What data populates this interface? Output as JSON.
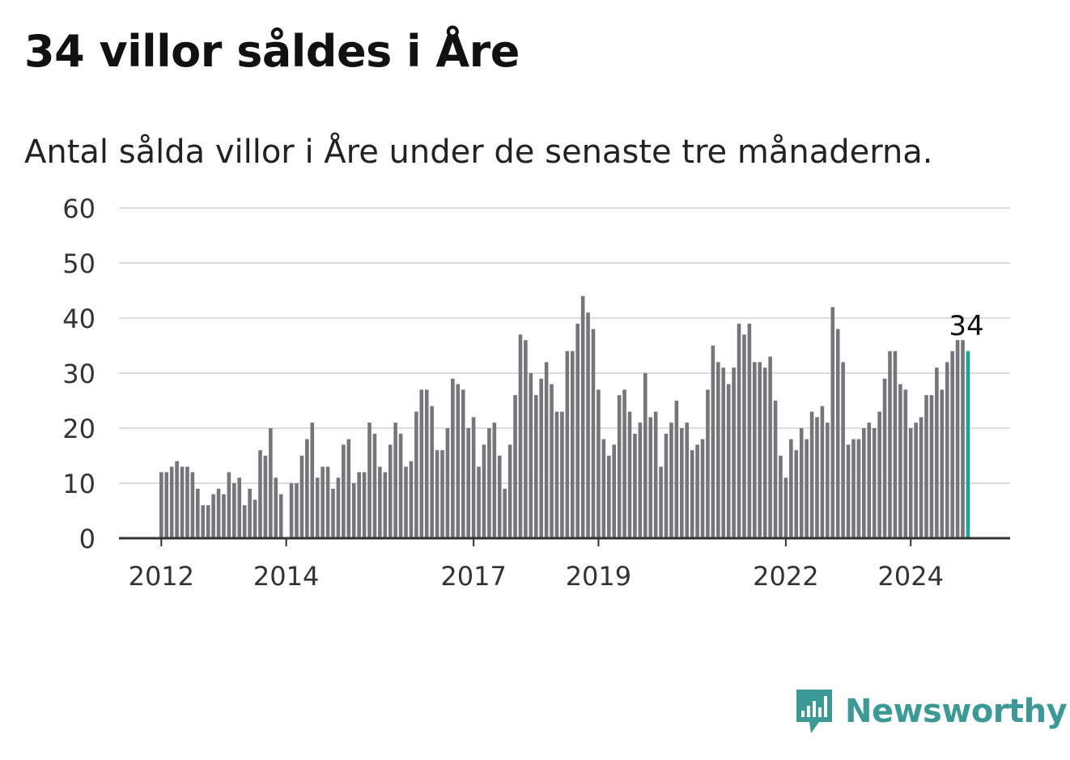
{
  "title": "34 villor såldes i Åre",
  "subtitle": "Antal sålda villor i Åre under de senaste tre månaderna.",
  "brand": "Newsworthy",
  "colors": {
    "bar": "#76767a",
    "highlight": "#1aa39a",
    "grid": "#dddddd",
    "axis": "#333333",
    "brand": "#3b9a96"
  },
  "chart_data": {
    "type": "bar",
    "x_start": "2012-01",
    "frequency": "monthly",
    "values": [
      12,
      12,
      13,
      14,
      13,
      13,
      12,
      9,
      6,
      6,
      8,
      9,
      8,
      12,
      10,
      11,
      6,
      9,
      7,
      16,
      15,
      20,
      11,
      8,
      null,
      10,
      10,
      15,
      18,
      21,
      11,
      13,
      13,
      9,
      11,
      17,
      18,
      10,
      12,
      12,
      21,
      19,
      13,
      12,
      17,
      21,
      19,
      13,
      14,
      23,
      27,
      27,
      24,
      16,
      16,
      20,
      29,
      28,
      27,
      20,
      22,
      13,
      17,
      20,
      21,
      15,
      9,
      17,
      26,
      37,
      36,
      30,
      26,
      29,
      32,
      28,
      23,
      23,
      34,
      34,
      39,
      44,
      41,
      38,
      27,
      18,
      15,
      17,
      26,
      27,
      23,
      19,
      21,
      30,
      22,
      23,
      13,
      19,
      21,
      25,
      20,
      21,
      16,
      17,
      18,
      27,
      35,
      32,
      31,
      28,
      31,
      39,
      37,
      39,
      32,
      32,
      31,
      33,
      25,
      15,
      11,
      18,
      16,
      20,
      18,
      23,
      22,
      24,
      21,
      42,
      38,
      32,
      17,
      18,
      18,
      20,
      21,
      20,
      23,
      29,
      34,
      34,
      28,
      27,
      20,
      21,
      22,
      26,
      26,
      31,
      27,
      32,
      34,
      36,
      36,
      34
    ],
    "highlight_last": true,
    "last_label": "34",
    "ylim": [
      0,
      60
    ],
    "yticks": [
      0,
      10,
      20,
      30,
      40,
      50,
      60
    ],
    "xticks": [
      {
        "label": "2012",
        "index": 0
      },
      {
        "label": "2014",
        "index": 24
      },
      {
        "label": "2017",
        "index": 60
      },
      {
        "label": "2019",
        "index": 84
      },
      {
        "label": "2022",
        "index": 120
      },
      {
        "label": "2024",
        "index": 144
      }
    ],
    "grid": true,
    "legend": "none"
  }
}
